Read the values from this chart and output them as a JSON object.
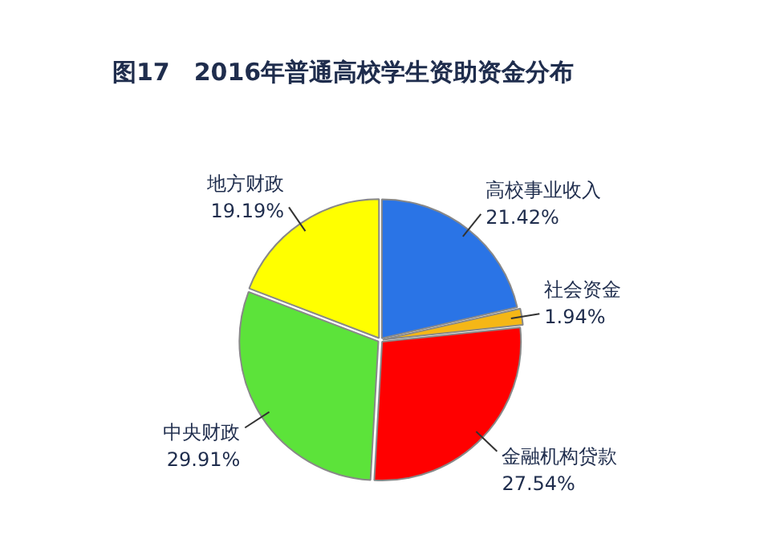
{
  "chart_data": {
    "type": "pie",
    "title": "图17　2016年普通高校学生资助资金分布",
    "categories": [
      "高校事业收入",
      "社会资金",
      "金融机构贷款",
      "中央财政",
      "地方财政"
    ],
    "values": [
      21.42,
      1.94,
      27.54,
      29.91,
      19.19
    ],
    "value_labels": [
      "21.42%",
      "1.94%",
      "27.54%",
      "29.91%",
      "19.19%"
    ],
    "colors": [
      "#2a74e6",
      "#f5b716",
      "#ff0000",
      "#5ce33a",
      "#ffff00"
    ],
    "legend": false
  }
}
